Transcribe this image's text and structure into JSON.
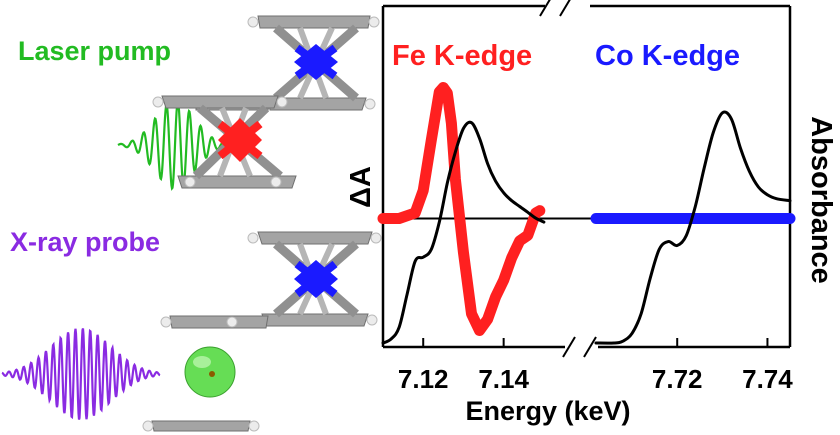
{
  "labels": {
    "laser_pump": "Laser pump",
    "xray_probe": "X-ray probe"
  },
  "colors": {
    "laser": "#22bb22",
    "xray": "#8a2be2",
    "fe": "#ff2020",
    "co": "#1a1aff",
    "carbon": "#9a9a9a",
    "hydrogen": "#ececec",
    "ion": "#66dd55",
    "black": "#000000"
  },
  "icons": {
    "upper_molecule": "ferrocene-cobaltocenium-dimer-icon",
    "lower_molecule": "photoexcited-dimer-icon",
    "ion": "solvated-ion-icon"
  },
  "chart_data": {
    "type": "line",
    "xlabel": "Energy (keV)",
    "ylabel_left": "ΔA",
    "ylabel_right": "Absorbance",
    "panels": [
      {
        "name": "Fe K-edge",
        "xlim": [
          7.11,
          7.156
        ],
        "ticks": [
          7.12,
          7.14
        ],
        "tick_labels": [
          "7.12",
          "7.14"
        ]
      },
      {
        "name": "Co K-edge",
        "xlim": [
          7.702,
          7.745
        ],
        "ticks": [
          7.72,
          7.74
        ],
        "tick_labels": [
          "7.72",
          "7.74"
        ]
      }
    ],
    "diff_ylim": [
      -1.25,
      1.35
    ],
    "abs_ylim": [
      0.0,
      1.35
    ],
    "series": [
      {
        "name": "Fe K-edge",
        "kind": "difference",
        "panel": 0,
        "x": [
          7.11,
          7.114,
          7.118,
          7.12,
          7.122,
          7.124,
          7.125,
          7.126,
          7.127,
          7.128,
          7.13,
          7.132,
          7.134,
          7.136,
          7.138,
          7.14,
          7.142,
          7.144,
          7.146,
          7.148,
          7.149
        ],
        "y": [
          0.0,
          0.0,
          0.05,
          0.25,
          0.7,
          1.13,
          1.17,
          1.12,
          0.85,
          0.35,
          -0.3,
          -0.85,
          -1.0,
          -0.9,
          -0.7,
          -0.55,
          -0.35,
          -0.2,
          -0.15,
          0.05,
          0.07
        ]
      },
      {
        "name": "Fe absorbance",
        "kind": "absorbance",
        "panel": 0,
        "x": [
          7.11,
          7.112,
          7.114,
          7.116,
          7.118,
          7.12,
          7.122,
          7.124,
          7.126,
          7.128,
          7.13,
          7.132,
          7.134,
          7.136,
          7.138,
          7.14,
          7.142,
          7.144,
          7.146,
          7.148,
          7.15
        ],
        "y": [
          0.0,
          0.02,
          0.08,
          0.25,
          0.42,
          0.44,
          0.48,
          0.62,
          0.82,
          0.98,
          1.1,
          1.13,
          1.05,
          0.92,
          0.83,
          0.77,
          0.73,
          0.7,
          0.67,
          0.64,
          0.62
        ]
      },
      {
        "name": "Co K-edge",
        "kind": "difference",
        "panel": 1,
        "x": [
          7.702,
          7.71,
          7.72,
          7.73,
          7.74,
          7.745
        ],
        "y": [
          0.0,
          0.0,
          0.0,
          0.0,
          0.0,
          0.0
        ]
      },
      {
        "name": "Co absorbance",
        "kind": "absorbance",
        "panel": 1,
        "x": [
          7.702,
          7.706,
          7.708,
          7.71,
          7.712,
          7.714,
          7.716,
          7.718,
          7.72,
          7.722,
          7.724,
          7.726,
          7.728,
          7.73,
          7.732,
          7.734,
          7.736,
          7.738,
          7.74,
          7.742,
          7.745
        ],
        "y": [
          0.0,
          0.0,
          0.01,
          0.05,
          0.15,
          0.33,
          0.48,
          0.52,
          0.5,
          0.55,
          0.7,
          0.9,
          1.08,
          1.18,
          1.15,
          1.0,
          0.88,
          0.8,
          0.76,
          0.74,
          0.73
        ]
      }
    ]
  }
}
